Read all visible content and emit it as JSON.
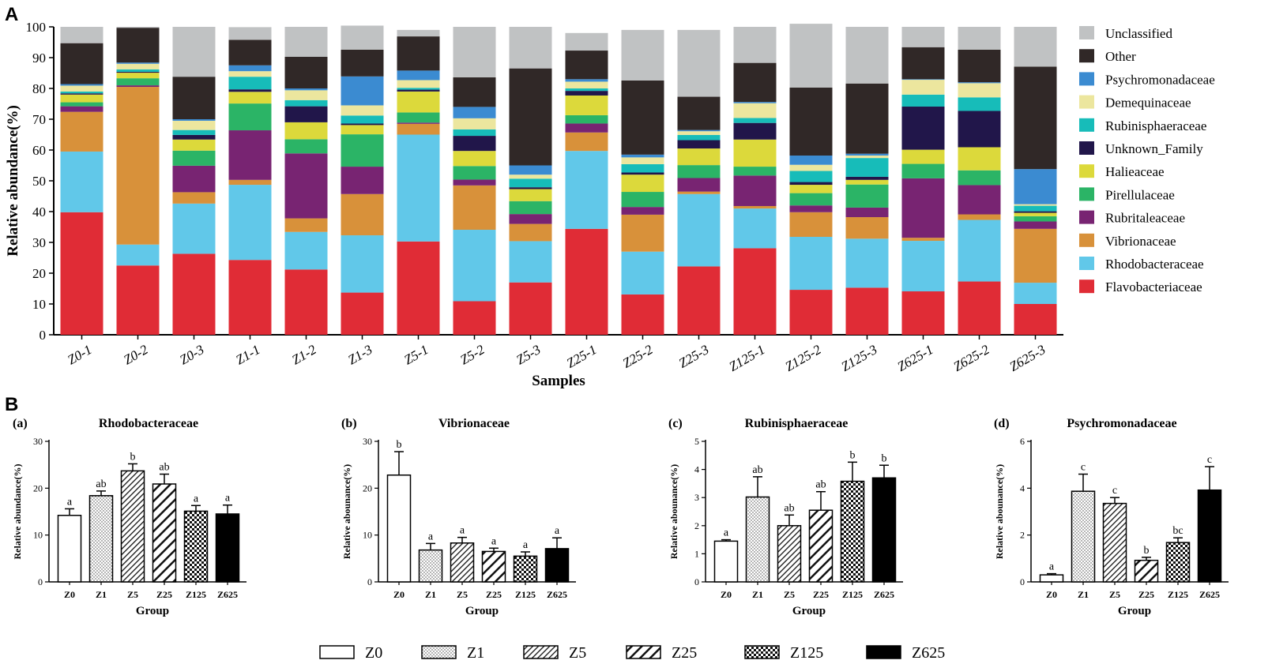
{
  "figure": {
    "panel_a_label": "A",
    "panel_b_label": "B"
  },
  "colors": {
    "Unclassified": "#c0c2c3",
    "Other": "#302827",
    "Psychromonadaceae": "#3b8bd1",
    "Demequinaceae": "#ece69e",
    "Rubinisphaeraceae": "#17bcb9",
    "Unknown_Family": "#21164a",
    "Halieaceae": "#dcd93b",
    "Pirellulaceae": "#2bb466",
    "Rubritaleaceae": "#782472",
    "Vibrionaceae": "#d8913a",
    "Rhodobacteraceae": "#61c8e9",
    "Flavobacteriaceae": "#e02c36"
  },
  "chart_data": [
    {
      "type": "bar",
      "stacked": true,
      "title": "",
      "xlabel": "Samples",
      "ylabel": "Relative abundance(%)",
      "ylim": [
        0,
        100
      ],
      "yticks": [
        "0",
        "10",
        "20",
        "30",
        "40",
        "50",
        "60",
        "70",
        "80",
        "90",
        "100"
      ],
      "categories": [
        "Z0-1",
        "Z0-2",
        "Z0-3",
        "Z1-1",
        "Z1-2",
        "Z1-3",
        "Z5-1",
        "Z5-2",
        "Z5-3",
        "Z25-1",
        "Z25-2",
        "Z25-3",
        "Z125-1",
        "Z125-2",
        "Z125-3",
        "Z625-1",
        "Z625-2",
        "Z625-3"
      ],
      "legend_position": "right",
      "series": [
        {
          "name": "Flavobacteriaceae",
          "values": [
            39.8,
            22.5,
            26.3,
            24.3,
            21.2,
            13.7,
            30.3,
            10.9,
            17.0,
            34.4,
            13.1,
            22.2,
            28.1,
            14.6,
            15.3,
            14.1,
            17.3,
            10.0
          ]
        },
        {
          "name": "Rhodobacteraceae",
          "values": [
            19.7,
            6.8,
            16.3,
            24.4,
            12.2,
            18.6,
            34.7,
            23.2,
            13.4,
            25.3,
            13.9,
            23.5,
            12.9,
            17.2,
            15.9,
            16.4,
            20.0,
            6.9
          ]
        },
        {
          "name": "Vibrionaceae",
          "values": [
            12.9,
            51.2,
            3.7,
            1.6,
            4.4,
            13.4,
            3.5,
            14.4,
            5.6,
            6.0,
            12.0,
            0.8,
            0.8,
            8.0,
            7.0,
            1.0,
            1.8,
            17.5
          ]
        },
        {
          "name": "Rubritaleaceae",
          "values": [
            1.8,
            0.5,
            8.6,
            16.1,
            21.1,
            8.9,
            0.4,
            1.9,
            3.2,
            2.9,
            2.5,
            4.4,
            9.9,
            2.2,
            3.1,
            19.3,
            9.5,
            2.4
          ]
        },
        {
          "name": "Pirellulaceae",
          "values": [
            1.3,
            2.3,
            4.9,
            8.7,
            4.6,
            10.5,
            3.3,
            4.4,
            4.2,
            2.7,
            4.9,
            4.2,
            2.9,
            4.0,
            7.5,
            4.7,
            4.8,
            1.7
          ]
        },
        {
          "name": "Halieaceae",
          "values": [
            2.5,
            1.8,
            3.6,
            3.8,
            5.5,
            3.0,
            6.8,
            4.9,
            3.9,
            6.4,
            5.6,
            5.4,
            8.8,
            2.7,
            1.5,
            4.6,
            7.5,
            1.1
          ]
        },
        {
          "name": "Unknown_Family",
          "values": [
            0.4,
            0.3,
            1.5,
            0.8,
            5.2,
            0.5,
            0.6,
            4.9,
            0.6,
            1.5,
            0.7,
            2.7,
            5.4,
            0.9,
            1.0,
            14.0,
            11.8,
            0.5
          ]
        },
        {
          "name": "Rubinisphaeraceae",
          "values": [
            0.6,
            0.8,
            1.6,
            4.1,
            2.0,
            2.6,
            0.6,
            2.1,
            2.8,
            0.8,
            2.7,
            1.7,
            1.6,
            3.6,
            6.1,
            3.9,
            4.4,
            1.8
          ]
        },
        {
          "name": "Demequinaceae",
          "values": [
            1.9,
            1.8,
            3.0,
            1.8,
            3.2,
            3.3,
            2.5,
            3.6,
            1.3,
            2.2,
            2.2,
            1.2,
            4.8,
            2.0,
            0.8,
            4.8,
            4.6,
            0.5
          ]
        },
        {
          "name": "Psychromonadaceae",
          "values": [
            0.5,
            0.4,
            0.5,
            1.9,
            0.6,
            9.4,
            3.1,
            3.7,
            3.0,
            0.8,
            0.9,
            0.4,
            0.4,
            3.0,
            0.6,
            0.2,
            0.3,
            11.4
          ]
        },
        {
          "name": "Other",
          "values": [
            13.3,
            11.3,
            13.8,
            8.3,
            10.3,
            8.7,
            11.1,
            9.6,
            31.5,
            9.3,
            24.1,
            10.8,
            12.7,
            22.1,
            22.8,
            10.4,
            10.6,
            33.3
          ]
        },
        {
          "name": "Unclassified",
          "values": [
            5.3,
            0.3,
            16.2,
            4.1,
            9.7,
            7.8,
            2.1,
            16.4,
            13.5,
            5.7,
            16.4,
            21.7,
            11.7,
            20.7,
            18.4,
            6.6,
            7.4,
            12.9
          ]
        }
      ],
      "legend_order": [
        "Unclassified",
        "Other",
        "Psychromonadaceae",
        "Demequinaceae",
        "Rubinisphaeraceae",
        "Unknown_Family",
        "Halieaceae",
        "Pirellulaceae",
        "Rubritaleaceae",
        "Vibrionaceae",
        "Rhodobacteraceae",
        "Flavobacteriaceae"
      ]
    },
    {
      "type": "bar",
      "panel_label": "(a)",
      "title": "Rhodobacteraceae",
      "xlabel": "Group",
      "ylabel": "Relative abundance(%)",
      "ylim": [
        0,
        30
      ],
      "yticks": [
        "0",
        "10",
        "20",
        "30"
      ],
      "categories": [
        "Z0",
        "Z1",
        "Z5",
        "Z25",
        "Z125",
        "Z625"
      ],
      "values": [
        14.2,
        18.4,
        23.7,
        20.9,
        15.1,
        14.5
      ],
      "errors": [
        1.4,
        1.0,
        1.5,
        2.1,
        1.2,
        1.9
      ],
      "letters": [
        "a",
        "ab",
        "b",
        "ab",
        "a",
        "a"
      ]
    },
    {
      "type": "bar",
      "panel_label": "(b)",
      "title": "Vibrionaceae",
      "xlabel": "Group",
      "ylabel": "Relative abounance(%)",
      "ylim": [
        0,
        30
      ],
      "yticks": [
        "0",
        "10",
        "20",
        "30"
      ],
      "categories": [
        "Z0",
        "Z1",
        "Z5",
        "Z25",
        "Z125",
        "Z625"
      ],
      "values": [
        22.8,
        6.8,
        8.3,
        6.5,
        5.5,
        7.1
      ],
      "errors": [
        5.0,
        1.4,
        1.2,
        0.7,
        0.9,
        2.3
      ],
      "letters": [
        "b",
        "a",
        "a",
        "a",
        "a",
        "a"
      ]
    },
    {
      "type": "bar",
      "panel_label": "(c)",
      "title": "Rubinisphaeraceae",
      "xlabel": "Group",
      "ylabel": "Relative abounance(%)",
      "ylim": [
        0,
        5
      ],
      "yticks": [
        "0",
        "1",
        "2",
        "3",
        "4",
        "5"
      ],
      "categories": [
        "Z0",
        "Z1",
        "Z5",
        "Z25",
        "Z125",
        "Z625"
      ],
      "values": [
        1.45,
        3.02,
        2.0,
        2.55,
        3.58,
        3.7
      ],
      "errors": [
        0.05,
        0.72,
        0.38,
        0.66,
        0.68,
        0.45
      ],
      "letters": [
        "a",
        "ab",
        "ab",
        "ab",
        "b",
        "b"
      ]
    },
    {
      "type": "bar",
      "panel_label": "(d)",
      "title": "Psychromonadaceae",
      "xlabel": "Group",
      "ylabel": "Relative abounance(%)",
      "ylim": [
        0,
        6
      ],
      "yticks": [
        "0",
        "2",
        "4",
        "6"
      ],
      "categories": [
        "Z0",
        "Z1",
        "Z5",
        "Z25",
        "Z125",
        "Z625"
      ],
      "values": [
        0.3,
        3.87,
        3.35,
        0.92,
        1.68,
        3.92
      ],
      "errors": [
        0.05,
        0.73,
        0.25,
        0.13,
        0.2,
        1.0
      ],
      "letters": [
        "a",
        "c",
        "c",
        "b",
        "bc",
        "c"
      ]
    }
  ],
  "group_legend": [
    "Z0",
    "Z1",
    "Z5",
    "Z25",
    "Z125",
    "Z625"
  ]
}
